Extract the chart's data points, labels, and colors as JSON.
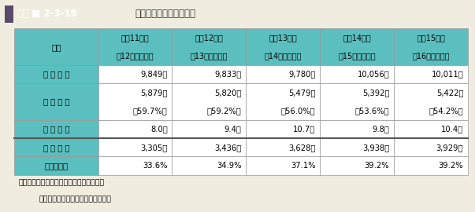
{
  "title_left": "図表 ■ 2-3-19",
  "title_right": "卒業者の進路状況の推移",
  "title_bg": "#9b8fac",
  "title_right_bg": "#e8e4d8",
  "title_square_color": "#5a4a6a",
  "header_row1": [
    "区分",
    "平成11年度",
    "平成12年度",
    "平成13年度",
    "平成14年度",
    "平成15年度"
  ],
  "header_row2": [
    "",
    "（12年３月卒）",
    "（13年３月卒）",
    "（14年３月卒）",
    "（15年３月卒）",
    "（16年３月卒）"
  ],
  "rows": [
    [
      "卒 業 者 数",
      "9,849人",
      "9,833人",
      "9,780人",
      "10,056人",
      "10,011人"
    ],
    [
      "就 職 者 数",
      "5,879人\n（59.7%）",
      "5,820人\n（59.2%）",
      "5,479人\n（56.0%）",
      "5,392人\n（53.6%）",
      "5,422人\n（54.2%）"
    ],
    [
      "求 人 倍 率",
      "8.0倍",
      "9.4倍",
      "10.7倍",
      "9.8倍",
      "10.4倍"
    ],
    [
      "進 学 者 数",
      "3,305人",
      "3,436人",
      "3,628人",
      "3,938人",
      "3,929人"
    ],
    [
      "進　学　率",
      "33.6%",
      "34.9%",
      "37.1%",
      "39.2%",
      "39.2%"
    ]
  ],
  "row_is_double": [
    false,
    true,
    false,
    false,
    false
  ],
  "header_bg": "#5bbfbf",
  "border_color": "#999999",
  "thick_border_after_row": 2,
  "note_line1": "（資料）１　学校基本調査報告書による。",
  "note_line2": "　　　　２　求人倍率は，文部科学省調べ。",
  "outer_bg": "#f0ede0"
}
